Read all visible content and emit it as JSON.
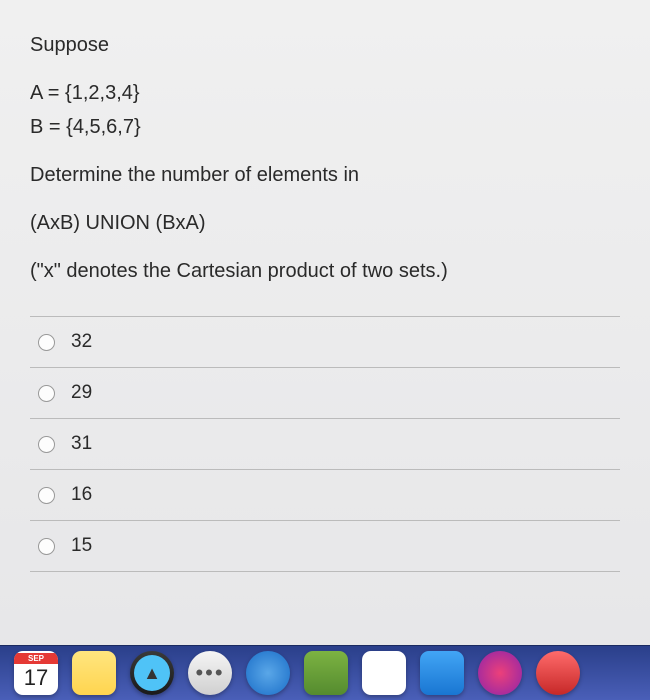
{
  "question": {
    "intro": "Suppose",
    "setA": "A = {1,2,3,4}",
    "setB": "B = {4,5,6,7}",
    "prompt": "Determine the number of elements in",
    "expression": "(AxB) UNION (BxA)",
    "note": "(\"x\" denotes the Cartesian product of two sets.)",
    "text_color": "#2a2a2a",
    "font_size": 20
  },
  "options": [
    {
      "label": "32"
    },
    {
      "label": "29"
    },
    {
      "label": "31"
    },
    {
      "label": "16"
    },
    {
      "label": "15"
    }
  ],
  "styling": {
    "background_top": "#f0f0f0",
    "background_bottom": "#e6e6e8",
    "divider_color": "#bbbbbb",
    "radio_border": "#999999",
    "option_font_size": 19
  },
  "dock": {
    "background_top": "#2a3f8a",
    "background_bottom": "#4a5fb8",
    "calendar": {
      "month": "SEP",
      "day": "17"
    }
  }
}
